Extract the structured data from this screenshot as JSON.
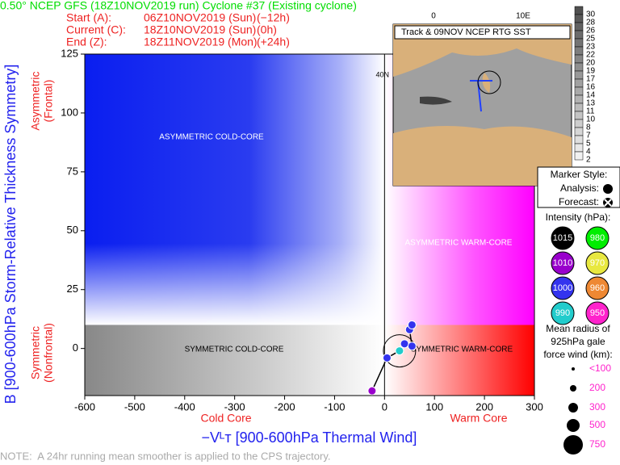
{
  "chart_data": {
    "type": "scatter",
    "title": "0.50° NCEP GFS (18Z10NOV2019 run) Cyclone #37 (Existing cyclone)",
    "x_label": "−Vᴸᴛ [900-600hPa Thermal Wind]",
    "y_label": "B [900-600hPa Storm-Relative Thickness Symmetry]",
    "y_label_top": [
      "Asymmetric",
      "(Frontal)"
    ],
    "y_label_bottom": [
      "Symmetric",
      "(Nonfrontal)"
    ],
    "x_label_left": "Cold Core",
    "x_label_right": "Warm Core",
    "quadrants": [
      "ASYMMETRIC COLD-CORE",
      "ASYMMETRIC WARM-CORE",
      "SYMMETRIC COLD-CORE",
      "SYMMETRIC WARM-CORE"
    ],
    "xlim": [
      -600,
      300
    ],
    "xticks": [
      -600,
      -500,
      -400,
      -300,
      -200,
      -100,
      0,
      100,
      200,
      300
    ],
    "ylim": [
      -20,
      125
    ],
    "yticks": [
      0,
      25,
      50,
      75,
      100,
      125
    ],
    "series": [
      {
        "name": "trajectory",
        "color": "#000000",
        "x": [
          -25,
          5,
          30,
          40,
          55,
          50,
          55
        ],
        "values": [
          -18,
          -4,
          -1,
          2,
          1,
          8,
          10
        ],
        "point_colors": [
          "#9900cc",
          "#3333ee",
          "#22cccc",
          "#3333ee",
          "#3333ee",
          "#3333ee",
          "#3333ee"
        ]
      }
    ]
  },
  "run_info": [
    {
      "label": "Start (A):",
      "date": "06Z10NOV2019 (Sun)",
      "offset": "(−12h)"
    },
    {
      "label": "Current (C):",
      "date": "18Z10NOV2019 (Sun)",
      "offset": "(0h)"
    },
    {
      "label": "End (Z):",
      "date": "18Z11NOV2019 (Mon)",
      "offset": "(+24h)"
    }
  ],
  "map": {
    "title": "Track & 09NOV NCEP RTG SST",
    "lon_labels": [
      "0",
      "10E"
    ],
    "lat_label": "40N",
    "sst_scale": [
      "30",
      "28",
      "26",
      "25",
      "23",
      "22",
      "20",
      "19",
      "17",
      "16",
      "14",
      "13",
      "11",
      "10",
      "8",
      "7",
      "5",
      "4",
      "2"
    ]
  },
  "legend": {
    "marker_title": "Marker Style:",
    "analysis": "Analysis:",
    "forecast": "Forecast:",
    "intensity_title": "Intensity (hPa):",
    "intensity": [
      {
        "label": "1015",
        "color": "#000000"
      },
      {
        "label": "980",
        "color": "#00ee00"
      },
      {
        "label": "1010",
        "color": "#9900cc"
      },
      {
        "label": "970",
        "color": "#e8e840"
      },
      {
        "label": "1000",
        "color": "#3333ee"
      },
      {
        "label": "960",
        "color": "#ee8833"
      },
      {
        "label": "990",
        "color": "#22cccc"
      },
      {
        "label": "950",
        "color": "#ff22cc"
      }
    ],
    "radius_title": [
      "Mean radius of",
      "925hPa gale",
      "force wind (km):"
    ],
    "radius": [
      "<100",
      "200",
      "300",
      "500",
      "750"
    ]
  },
  "note": "NOTE:  A 24hr running mean smoother is applied to the CPS trajectory."
}
